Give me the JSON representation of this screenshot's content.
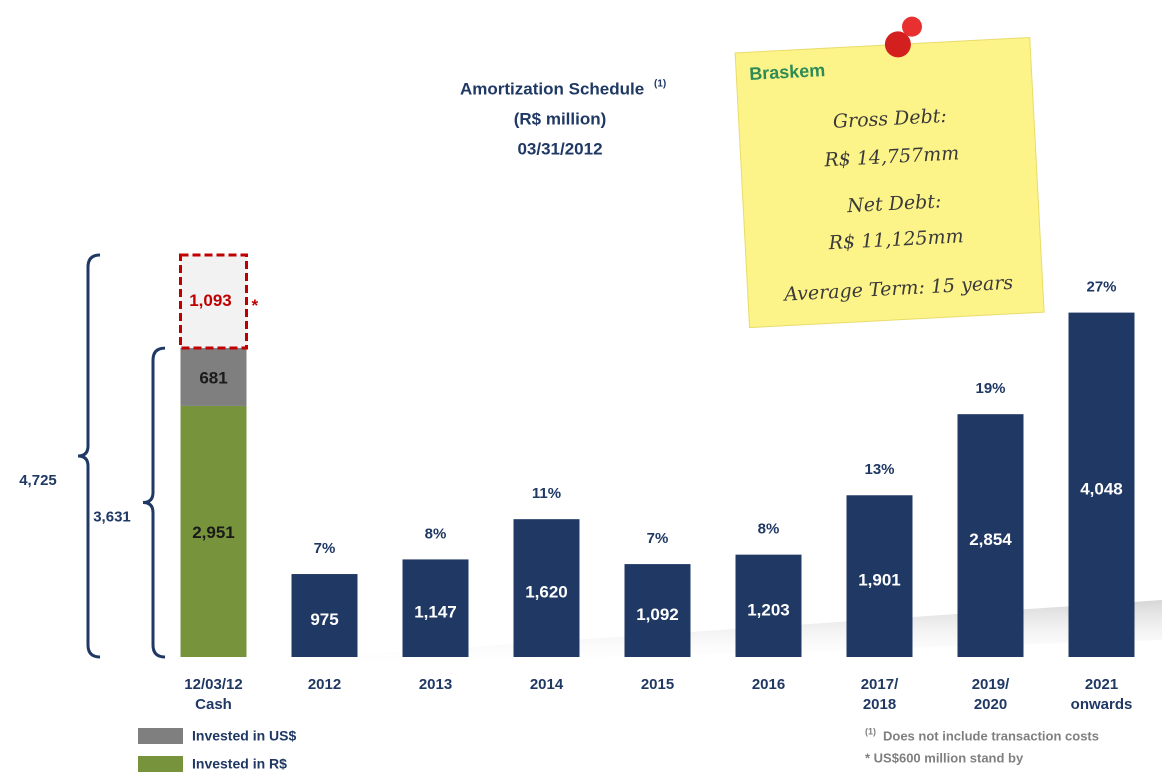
{
  "chart_data": {
    "type": "bar",
    "title": "Amortization Schedule",
    "title_note": "(1)",
    "subtitle": "(R$ million)",
    "date": "03/31/2012",
    "categories": [
      "12/03/12\nCash",
      "2012",
      "2013",
      "2014",
      "2015",
      "2016",
      "2017/\n2018",
      "2019/\n2020",
      "2021\nonwards"
    ],
    "values": [
      null,
      975,
      1147,
      1620,
      1092,
      1203,
      1901,
      2854,
      4048
    ],
    "value_labels": [
      null,
      "975",
      "1,147",
      "1,620",
      "1,092",
      "1,203",
      "1,901",
      "2,854",
      "4,048"
    ],
    "percent_labels": [
      null,
      "7%",
      "8%",
      "11%",
      "7%",
      "8%",
      "13%",
      "19%",
      "27%"
    ],
    "color": "#1f3864",
    "ylim": [
      0,
      4725
    ],
    "cash_series": [
      {
        "name": "Invested in R$",
        "color": "#77933c",
        "values": [
          2951
        ],
        "value_labels": [
          "2,951"
        ]
      },
      {
        "name": "Invested in US$",
        "color": "#7f7f7f",
        "values": [
          681
        ],
        "value_labels": [
          "681"
        ]
      }
    ],
    "standby": {
      "value": 1093,
      "label": "1,093",
      "marker": "*",
      "color": "#c00000"
    },
    "brackets": [
      {
        "value": 4725,
        "label": "4,725"
      },
      {
        "value": 3631,
        "label": "3,631"
      }
    ],
    "note": {
      "logo": "Braskem",
      "lines": [
        "Gross Debt:",
        "R$ 14,757mm",
        "Net Debt:",
        "R$ 11,125mm",
        "Average Term: 15 years"
      ]
    },
    "footnotes": [
      {
        "marker": "(1)",
        "text": "Does not include transaction costs"
      },
      {
        "text": "* US$600 million stand by"
      }
    ]
  }
}
